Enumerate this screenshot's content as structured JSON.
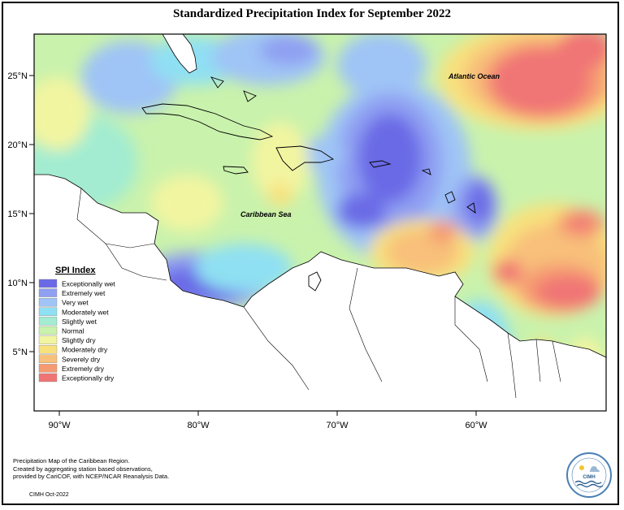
{
  "title": "Standardized Precipitation Index for September 2022",
  "labels": {
    "atlantic": "Atlantic Ocean",
    "caribbean": "Caribbean Sea"
  },
  "legend": {
    "title": "SPI Index",
    "items": [
      {
        "label": "Exceptionally wet",
        "color": "#6a6ae6"
      },
      {
        "label": "Extremely wet",
        "color": "#8f9ff2"
      },
      {
        "label": "Very wet",
        "color": "#9fc4f6"
      },
      {
        "label": "Moderately wet",
        "color": "#8fe0f3"
      },
      {
        "label": "Slightly wet",
        "color": "#a3ecd1"
      },
      {
        "label": "Normal",
        "color": "#c9f2ac"
      },
      {
        "label": "Slightly dry",
        "color": "#f2f5a0"
      },
      {
        "label": "Moderately dry",
        "color": "#f8e17d"
      },
      {
        "label": "Severely dry",
        "color": "#f8c07a"
      },
      {
        "label": "Extremely dry",
        "color": "#f69a72"
      },
      {
        "label": "Exceptionally dry",
        "color": "#f07474"
      }
    ]
  },
  "axes": {
    "lat_ticks": [
      "25°N",
      "20°N",
      "15°N",
      "10°N",
      "5°N"
    ],
    "lon_ticks": [
      "90°W",
      "80°W",
      "70°W",
      "60°W"
    ]
  },
  "footnote": {
    "lines": [
      "Precipitation Map of the Caribbean Region.",
      "Created by aggregating station based observations,",
      "provided by CariCOF, with NCEP/NCAR Reanalysis Data."
    ],
    "credit": "CIMH Oct-2022"
  },
  "logo": {
    "text": "CIMH"
  }
}
